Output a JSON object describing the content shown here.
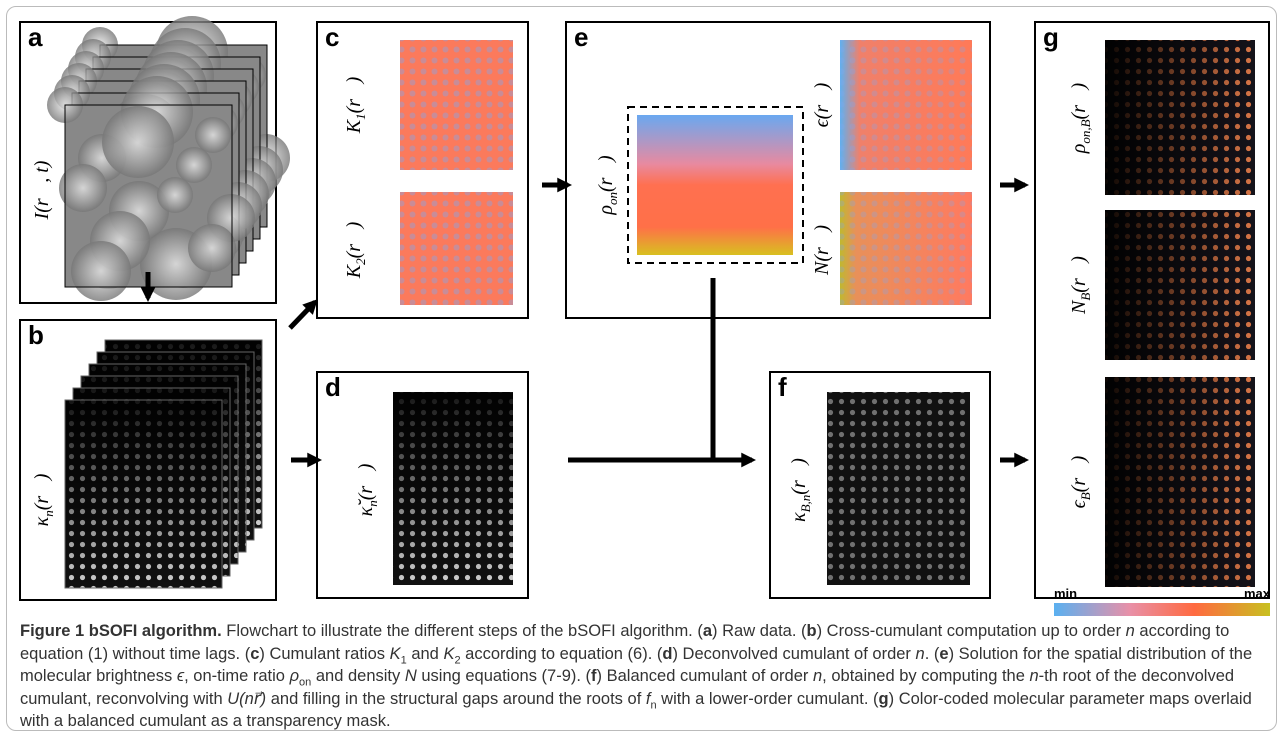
{
  "panels": [
    {
      "letter": "a",
      "labels": [
        {
          "main": "I",
          "sub": "",
          "arg": "(r⃗, t)"
        }
      ]
    },
    {
      "letter": "b",
      "labels": [
        {
          "main": "κ",
          "sub": "n",
          "arg": "(r⃗)"
        }
      ]
    },
    {
      "letter": "c",
      "labels": [
        {
          "main": "K",
          "sub": "1",
          "arg": "(r⃗)"
        },
        {
          "main": "K",
          "sub": "2",
          "arg": "(r⃗)"
        }
      ]
    },
    {
      "letter": "d",
      "labels": [
        {
          "main": "κ̆",
          "sub": "n",
          "arg": "(r⃗)"
        }
      ]
    },
    {
      "letter": "e",
      "labels": [
        {
          "main": "ρ",
          "sub": "on",
          "arg": "(r⃗)"
        },
        {
          "main": "ϵ",
          "sub": "",
          "arg": "(r⃗)"
        },
        {
          "main": "N",
          "sub": "",
          "arg": "(r⃗)"
        }
      ]
    },
    {
      "letter": "f",
      "labels": [
        {
          "main": "κ",
          "sub": "B,n",
          "arg": "(r⃗)"
        }
      ]
    },
    {
      "letter": "g",
      "labels": [
        {
          "main": "ρ",
          "sub": "on,B",
          "arg": "(r⃗)"
        },
        {
          "main": "N",
          "sub": "B",
          "arg": "(r⃗)"
        },
        {
          "main": "ϵ",
          "sub": "B",
          "arg": "(r⃗)"
        }
      ]
    }
  ],
  "colorbar": {
    "min": "min",
    "max": "max"
  },
  "caption": [
    {
      "text": "Figure 1 bSOFI algorithm.",
      "style": "bold"
    },
    {
      "text": " Flowchart to illustrate the different steps of the bSOFI algorithm. (",
      "style": "normal"
    },
    {
      "text": "a",
      "style": "bold"
    },
    {
      "text": ") Raw data. (",
      "style": "normal"
    },
    {
      "text": "b",
      "style": "bold"
    },
    {
      "text": ") Cross-cumulant computation up to order ",
      "style": "normal"
    },
    {
      "text": "n",
      "style": "italic"
    },
    {
      "text": " according to equation (1) without time lags. (",
      "style": "normal"
    },
    {
      "text": "c",
      "style": "bold"
    },
    {
      "text": ") Cumulant ratios ",
      "style": "normal"
    },
    {
      "text": "K",
      "style": "italic"
    },
    {
      "text": "1",
      "style": "sub"
    },
    {
      "text": " and ",
      "style": "normal"
    },
    {
      "text": "K",
      "style": "italic"
    },
    {
      "text": "2",
      "style": "sub"
    },
    {
      "text": " according to equation (6). (",
      "style": "normal"
    },
    {
      "text": "d",
      "style": "bold"
    },
    {
      "text": ") Deconvolved cumulant of order ",
      "style": "normal"
    },
    {
      "text": "n",
      "style": "italic"
    },
    {
      "text": ". (",
      "style": "normal"
    },
    {
      "text": "e",
      "style": "bold"
    },
    {
      "text": ") Solution for the spatial distribution of the molecular brightness ",
      "style": "normal"
    },
    {
      "text": "ϵ",
      "style": "italic"
    },
    {
      "text": ", on-time ratio ",
      "style": "normal"
    },
    {
      "text": "ρ",
      "style": "italic"
    },
    {
      "text": "on",
      "style": "sub"
    },
    {
      "text": " and density ",
      "style": "normal"
    },
    {
      "text": "N",
      "style": "italic"
    },
    {
      "text": " using equations (7-9). (",
      "style": "normal"
    },
    {
      "text": "f",
      "style": "bold"
    },
    {
      "text": ") Balanced cumulant of order ",
      "style": "normal"
    },
    {
      "text": "n",
      "style": "italic"
    },
    {
      "text": ", obtained by computing the ",
      "style": "normal"
    },
    {
      "text": "n",
      "style": "italic"
    },
    {
      "text": "-th root of the deconvolved cumulant, reconvolving with ",
      "style": "normal"
    },
    {
      "text": "U(nr⃗)",
      "style": "italic"
    },
    {
      "text": " and filling in the structural gaps around the roots of ",
      "style": "normal"
    },
    {
      "text": "f",
      "style": "italic"
    },
    {
      "text": "n",
      "style": "sub"
    },
    {
      "text": " with a lower-order cumulant. (",
      "style": "normal"
    },
    {
      "text": "g",
      "style": "bold"
    },
    {
      "text": ") Color-coded molecular parameter maps overlaid with a balanced cumulant as a transparency mask.",
      "style": "normal"
    }
  ]
}
